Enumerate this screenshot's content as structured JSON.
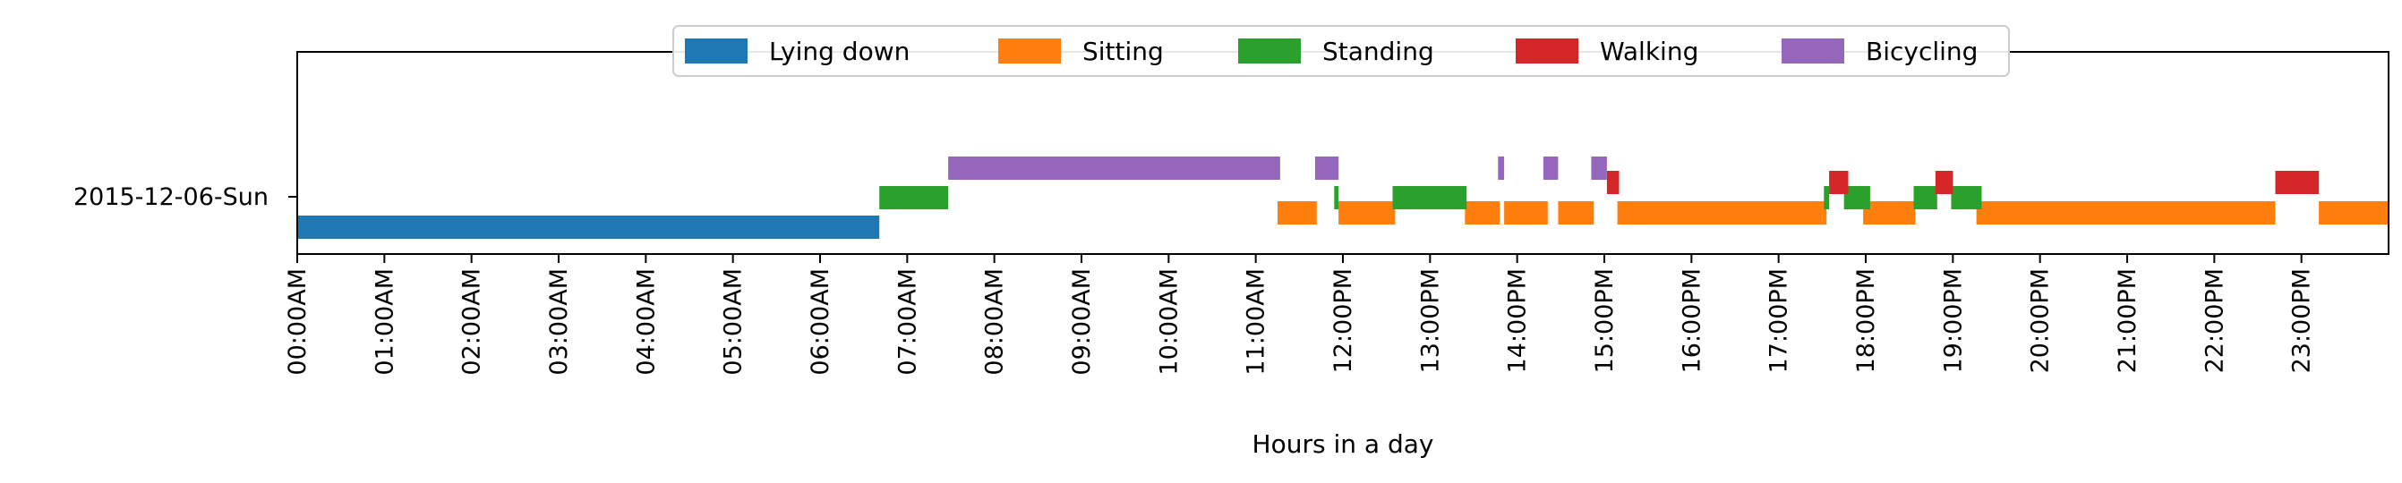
{
  "chart_data": {
    "type": "timeline",
    "xlabel": "Hours in a day",
    "row_label": "2015-12-06-Sun",
    "x_range_hours": [
      0,
      24
    ],
    "x_ticks": [
      "00:00AM",
      "01:00AM",
      "02:00AM",
      "03:00AM",
      "04:00AM",
      "05:00AM",
      "06:00AM",
      "07:00AM",
      "08:00AM",
      "09:00AM",
      "10:00AM",
      "11:00AM",
      "12:00PM",
      "13:00PM",
      "14:00PM",
      "15:00PM",
      "16:00PM",
      "17:00PM",
      "18:00PM",
      "19:00PM",
      "20:00PM",
      "21:00PM",
      "22:00PM",
      "23:00PM"
    ],
    "legend_position": "top-center",
    "grid": false,
    "series": [
      {
        "name": "Lying down",
        "color": "#1f77b4",
        "level": 0,
        "intervals": [
          [
            0.0,
            6.68
          ]
        ]
      },
      {
        "name": "Sitting",
        "color": "#ff7f0e",
        "level": 1,
        "intervals": [
          [
            11.25,
            11.7
          ],
          [
            11.95,
            12.6
          ],
          [
            13.4,
            13.8
          ],
          [
            13.85,
            14.35
          ],
          [
            14.47,
            14.88
          ],
          [
            15.15,
            17.5
          ],
          [
            17.5,
            17.55
          ],
          [
            17.97,
            18.57
          ],
          [
            19.27,
            22.7
          ],
          [
            23.2,
            24.0
          ]
        ]
      },
      {
        "name": "Standing",
        "color": "#2ca02c",
        "level": 2,
        "intervals": [
          [
            6.68,
            7.47
          ],
          [
            11.9,
            11.95
          ],
          [
            12.57,
            13.42
          ],
          [
            17.52,
            17.58
          ],
          [
            17.75,
            18.05
          ],
          [
            18.55,
            18.82
          ],
          [
            18.98,
            19.33
          ]
        ]
      },
      {
        "name": "Walking",
        "color": "#d62728",
        "level": 3,
        "intervals": [
          [
            15.03,
            15.17
          ],
          [
            17.58,
            17.8
          ],
          [
            18.8,
            19.0
          ],
          [
            22.7,
            23.2
          ]
        ]
      },
      {
        "name": "Bicycling",
        "color": "#9467bd",
        "level": 4,
        "intervals": [
          [
            7.47,
            11.28
          ],
          [
            11.68,
            11.95
          ],
          [
            13.78,
            13.85
          ],
          [
            14.3,
            14.47
          ],
          [
            14.85,
            15.03
          ]
        ]
      }
    ]
  }
}
